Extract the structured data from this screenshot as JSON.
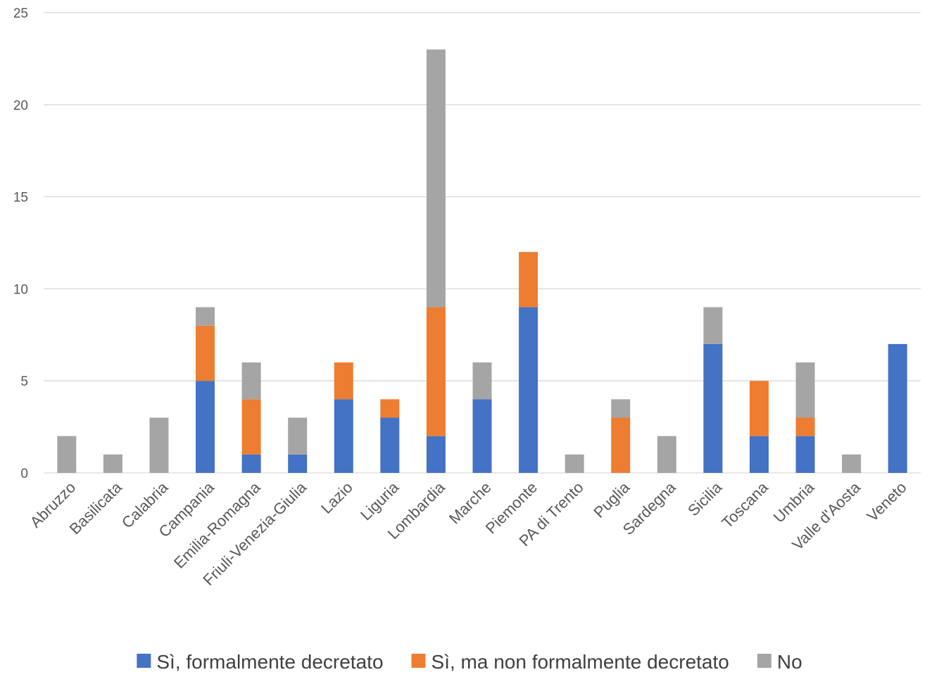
{
  "chart_data": {
    "type": "bar",
    "stacked": true,
    "title": "",
    "xlabel": "",
    "ylabel": "",
    "ylim": [
      0,
      25
    ],
    "yticks": [
      0,
      5,
      10,
      15,
      20,
      25
    ],
    "grid": "horizontal",
    "legend_position": "bottom",
    "categories": [
      "Abruzzo",
      "Basilicata",
      "Calabria",
      "Campania",
      "Emilia-Romagna",
      "Friuli-Venezia-Giulia",
      "Lazio",
      "Liguria",
      "Lombardia",
      "Marche",
      "Piemonte",
      "PA di Trento",
      "Puglia",
      "Sardegna",
      "Sicilia",
      "Toscana",
      "Umbria",
      "Valle d'Aosta",
      "Veneto"
    ],
    "series": [
      {
        "name": "Sì, formalmente decretato",
        "color": "#4472C4",
        "values": [
          0,
          0,
          0,
          5,
          1,
          1,
          4,
          3,
          2,
          4,
          9,
          0,
          0,
          0,
          7,
          2,
          2,
          0,
          7
        ]
      },
      {
        "name": "Sì, ma non formalmente decretato",
        "color": "#ED7D31",
        "values": [
          0,
          0,
          0,
          3,
          3,
          0,
          2,
          1,
          7,
          0,
          3,
          0,
          3,
          0,
          0,
          3,
          1,
          0,
          0
        ]
      },
      {
        "name": "No",
        "color": "#A5A5A5",
        "values": [
          2,
          1,
          3,
          1,
          2,
          2,
          0,
          0,
          14,
          2,
          0,
          1,
          1,
          2,
          2,
          0,
          3,
          1,
          0
        ]
      }
    ]
  }
}
